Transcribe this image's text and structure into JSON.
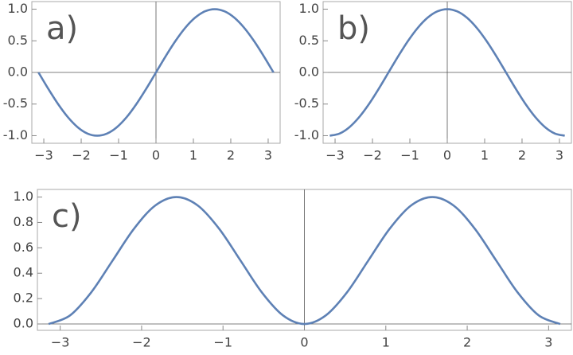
{
  "chart_data": [
    {
      "type": "line",
      "title": "a)",
      "x": [
        -3.142,
        -2.88,
        -2.618,
        -2.356,
        -2.094,
        -1.833,
        -1.571,
        -1.309,
        -1.047,
        -0.785,
        -0.524,
        -0.262,
        0,
        0.262,
        0.524,
        0.785,
        1.047,
        1.309,
        1.571,
        1.833,
        2.094,
        2.356,
        2.618,
        2.88,
        3.142
      ],
      "values": [
        0,
        -0.259,
        -0.5,
        -0.707,
        -0.866,
        -0.966,
        -1,
        -0.966,
        -0.866,
        -0.707,
        -0.5,
        -0.259,
        0,
        0.259,
        0.5,
        0.707,
        0.866,
        0.966,
        1,
        0.966,
        0.866,
        0.707,
        0.5,
        0.259,
        0
      ],
      "color": "#5e81b5",
      "xlim": [
        -3.32,
        3.32
      ],
      "ylim": [
        -1.12,
        1.12
      ],
      "xticks": [
        {
          "value": -3,
          "label": "−3"
        },
        {
          "value": -2,
          "label": "−2"
        },
        {
          "value": -1,
          "label": "−1"
        },
        0,
        1,
        2,
        3
      ],
      "yticks": [
        {
          "value": -1,
          "label": "-1.0"
        },
        {
          "value": -0.5,
          "label": "-0.5"
        },
        {
          "value": 0,
          "label": "0.0"
        },
        {
          "value": 0.5,
          "label": "0.5"
        },
        {
          "value": 1,
          "label": "1.0"
        }
      ]
    },
    {
      "type": "line",
      "title": "b)",
      "x": [
        -3.142,
        -2.88,
        -2.618,
        -2.356,
        -2.094,
        -1.833,
        -1.571,
        -1.309,
        -1.047,
        -0.785,
        -0.524,
        -0.262,
        0,
        0.262,
        0.524,
        0.785,
        1.047,
        1.309,
        1.571,
        1.833,
        2.094,
        2.356,
        2.618,
        2.88,
        3.142
      ],
      "values": [
        -1,
        -0.966,
        -0.866,
        -0.707,
        -0.5,
        -0.259,
        0,
        0.259,
        0.5,
        0.707,
        0.866,
        0.966,
        1,
        0.966,
        0.866,
        0.707,
        0.5,
        0.259,
        0,
        -0.259,
        -0.5,
        -0.707,
        -0.866,
        -0.966,
        -1
      ],
      "color": "#5e81b5",
      "xlim": [
        -3.32,
        3.32
      ],
      "ylim": [
        -1.12,
        1.12
      ],
      "xticks": [
        {
          "value": -3,
          "label": "−3"
        },
        {
          "value": -2,
          "label": "−2"
        },
        {
          "value": -1,
          "label": "−1"
        },
        0,
        1,
        2,
        3
      ],
      "yticks": [
        {
          "value": -1,
          "label": "-1.0"
        },
        {
          "value": -0.5,
          "label": "-0.5"
        },
        {
          "value": 0,
          "label": "0.0"
        },
        {
          "value": 0.5,
          "label": "0.5"
        },
        {
          "value": 1,
          "label": "1.0"
        }
      ]
    },
    {
      "type": "line",
      "title": "c)",
      "x": [
        -3.142,
        -2.88,
        -2.618,
        -2.356,
        -2.094,
        -1.833,
        -1.571,
        -1.309,
        -1.047,
        -0.785,
        -0.524,
        -0.262,
        0,
        0.262,
        0.524,
        0.785,
        1.047,
        1.309,
        1.571,
        1.833,
        2.094,
        2.356,
        2.618,
        2.88,
        3.142
      ],
      "values": [
        0,
        0.067,
        0.25,
        0.5,
        0.75,
        0.933,
        1,
        0.933,
        0.75,
        0.5,
        0.25,
        0.067,
        0,
        0.067,
        0.25,
        0.5,
        0.75,
        0.933,
        1,
        0.933,
        0.75,
        0.5,
        0.25,
        0.067,
        0
      ],
      "color": "#5e81b5",
      "xlim": [
        -3.28,
        3.28
      ],
      "ylim": [
        -0.05,
        1.06
      ],
      "xticks": [
        {
          "value": -3,
          "label": "−3"
        },
        {
          "value": -2,
          "label": "−2"
        },
        {
          "value": -1,
          "label": "−1"
        },
        0,
        1,
        2,
        3
      ],
      "yticks": [
        {
          "value": 0,
          "label": "0.0"
        },
        {
          "value": 0.2,
          "label": "0.2"
        },
        {
          "value": 0.4,
          "label": "0.4"
        },
        {
          "value": 0.6,
          "label": "0.6"
        },
        {
          "value": 0.8,
          "label": "0.8"
        },
        {
          "value": 1,
          "label": "1.0"
        }
      ]
    }
  ]
}
